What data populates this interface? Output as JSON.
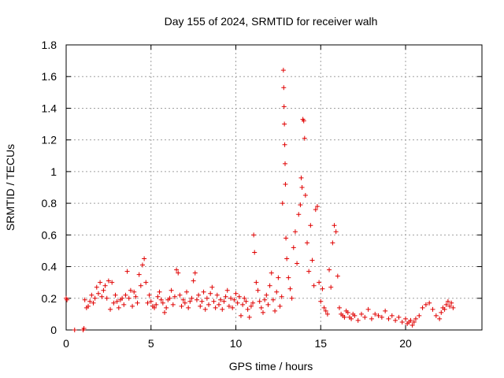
{
  "chart_data": {
    "type": "scatter",
    "title": "Day 155 of 2024, SRMTID for receiver walh",
    "xlabel": "GPS time / hours",
    "ylabel": "SRMTID / TECUs",
    "xlim": [
      0,
      24.5
    ],
    "ylim": [
      0,
      1.8
    ],
    "xticks": [
      "0",
      "5",
      "10",
      "15",
      "20"
    ],
    "yticks": [
      "0",
      "0.2",
      "0.4",
      "0.6",
      "0.8",
      "1",
      "1.2",
      "1.4",
      "1.6",
      "1.8"
    ],
    "grid": true,
    "marker": "+",
    "color": "#e00000",
    "series": [
      {
        "name": "walh",
        "x": [
          0.0,
          0.05,
          0.5,
          1.0,
          1.05,
          1.1,
          1.2,
          1.3,
          1.4,
          1.5,
          1.6,
          1.7,
          1.8,
          1.9,
          2.0,
          2.1,
          2.2,
          2.3,
          2.4,
          2.5,
          2.6,
          2.7,
          2.8,
          2.9,
          3.0,
          3.1,
          3.2,
          3.3,
          3.4,
          3.5,
          3.6,
          3.7,
          3.8,
          3.9,
          4.0,
          4.1,
          4.2,
          4.3,
          4.4,
          4.5,
          4.6,
          4.7,
          4.8,
          4.9,
          5.0,
          5.1,
          5.2,
          5.3,
          5.4,
          5.5,
          5.6,
          5.7,
          5.8,
          5.9,
          6.0,
          6.1,
          6.2,
          6.3,
          6.4,
          6.5,
          6.6,
          6.7,
          6.8,
          6.9,
          7.0,
          7.1,
          7.2,
          7.3,
          7.4,
          7.5,
          7.6,
          7.7,
          7.8,
          7.9,
          8.0,
          8.1,
          8.2,
          8.3,
          8.4,
          8.5,
          8.6,
          8.7,
          8.8,
          8.9,
          9.0,
          9.1,
          9.2,
          9.3,
          9.4,
          9.5,
          9.6,
          9.7,
          9.8,
          9.9,
          10.0,
          10.1,
          10.2,
          10.3,
          10.4,
          10.5,
          10.6,
          10.7,
          10.8,
          10.9,
          11.0,
          11.05,
          11.1,
          11.2,
          11.3,
          11.4,
          11.5,
          11.6,
          11.7,
          11.8,
          11.9,
          12.0,
          12.1,
          12.2,
          12.3,
          12.4,
          12.5,
          12.6,
          12.7,
          12.75,
          12.8,
          12.82,
          12.84,
          12.86,
          12.88,
          12.9,
          12.92,
          12.95,
          13.0,
          13.1,
          13.2,
          13.3,
          13.4,
          13.5,
          13.6,
          13.7,
          13.8,
          13.85,
          13.9,
          13.95,
          14.0,
          14.05,
          14.1,
          14.2,
          14.3,
          14.4,
          14.5,
          14.6,
          14.7,
          14.8,
          14.9,
          15.0,
          15.1,
          15.2,
          15.3,
          15.4,
          15.5,
          15.6,
          15.7,
          15.8,
          15.9,
          16.0,
          16.1,
          16.2,
          16.3,
          16.4,
          16.5,
          16.6,
          16.7,
          16.8,
          16.9,
          17.0,
          17.2,
          17.4,
          17.6,
          17.8,
          18.0,
          18.2,
          18.4,
          18.6,
          18.8,
          19.0,
          19.2,
          19.4,
          19.6,
          19.8,
          20.0,
          20.1,
          20.2,
          20.3,
          20.4,
          20.5,
          20.6,
          20.8,
          21.0,
          21.2,
          21.4,
          21.6,
          21.8,
          22.0,
          22.1,
          22.2,
          22.3,
          22.4,
          22.5,
          22.6,
          22.7,
          22.8
        ],
        "y": [
          0.2,
          0.19,
          0.0,
          0.0,
          0.01,
          0.19,
          0.14,
          0.15,
          0.18,
          0.22,
          0.17,
          0.2,
          0.27,
          0.23,
          0.3,
          0.21,
          0.25,
          0.28,
          0.2,
          0.31,
          0.13,
          0.3,
          0.17,
          0.22,
          0.18,
          0.14,
          0.19,
          0.2,
          0.16,
          0.22,
          0.37,
          0.2,
          0.25,
          0.15,
          0.24,
          0.21,
          0.17,
          0.35,
          0.28,
          0.41,
          0.45,
          0.3,
          0.17,
          0.22,
          0.18,
          0.15,
          0.14,
          0.16,
          0.21,
          0.24,
          0.19,
          0.17,
          0.11,
          0.14,
          0.19,
          0.2,
          0.25,
          0.16,
          0.21,
          0.38,
          0.36,
          0.22,
          0.15,
          0.19,
          0.17,
          0.24,
          0.14,
          0.18,
          0.2,
          0.31,
          0.36,
          0.19,
          0.22,
          0.15,
          0.18,
          0.24,
          0.13,
          0.2,
          0.16,
          0.23,
          0.27,
          0.18,
          0.14,
          0.22,
          0.16,
          0.19,
          0.13,
          0.18,
          0.21,
          0.25,
          0.15,
          0.2,
          0.14,
          0.19,
          0.23,
          0.17,
          0.21,
          0.09,
          0.16,
          0.2,
          0.18,
          0.13,
          0.08,
          0.15,
          0.17,
          0.6,
          0.49,
          0.3,
          0.25,
          0.18,
          0.14,
          0.11,
          0.19,
          0.22,
          0.16,
          0.28,
          0.36,
          0.19,
          0.12,
          0.24,
          0.33,
          0.15,
          0.21,
          0.8,
          1.64,
          1.53,
          1.41,
          1.3,
          1.17,
          1.05,
          0.92,
          0.58,
          0.45,
          0.33,
          0.26,
          0.2,
          0.52,
          0.62,
          0.42,
          0.73,
          0.79,
          0.96,
          0.9,
          1.33,
          1.32,
          1.21,
          0.85,
          0.55,
          0.37,
          0.66,
          0.44,
          0.28,
          0.76,
          0.78,
          0.3,
          0.18,
          0.26,
          0.14,
          0.12,
          0.1,
          0.38,
          0.27,
          0.55,
          0.66,
          0.62,
          0.34,
          0.14,
          0.1,
          0.09,
          0.08,
          0.12,
          0.11,
          0.08,
          0.07,
          0.1,
          0.09,
          0.06,
          0.1,
          0.08,
          0.13,
          0.07,
          0.1,
          0.09,
          0.08,
          0.12,
          0.07,
          0.09,
          0.06,
          0.08,
          0.05,
          0.07,
          0.04,
          0.05,
          0.06,
          0.03,
          0.05,
          0.07,
          0.09,
          0.14,
          0.16,
          0.17,
          0.13,
          0.09,
          0.07,
          0.11,
          0.14,
          0.13,
          0.16,
          0.18,
          0.15,
          0.17,
          0.14
        ]
      }
    ]
  }
}
